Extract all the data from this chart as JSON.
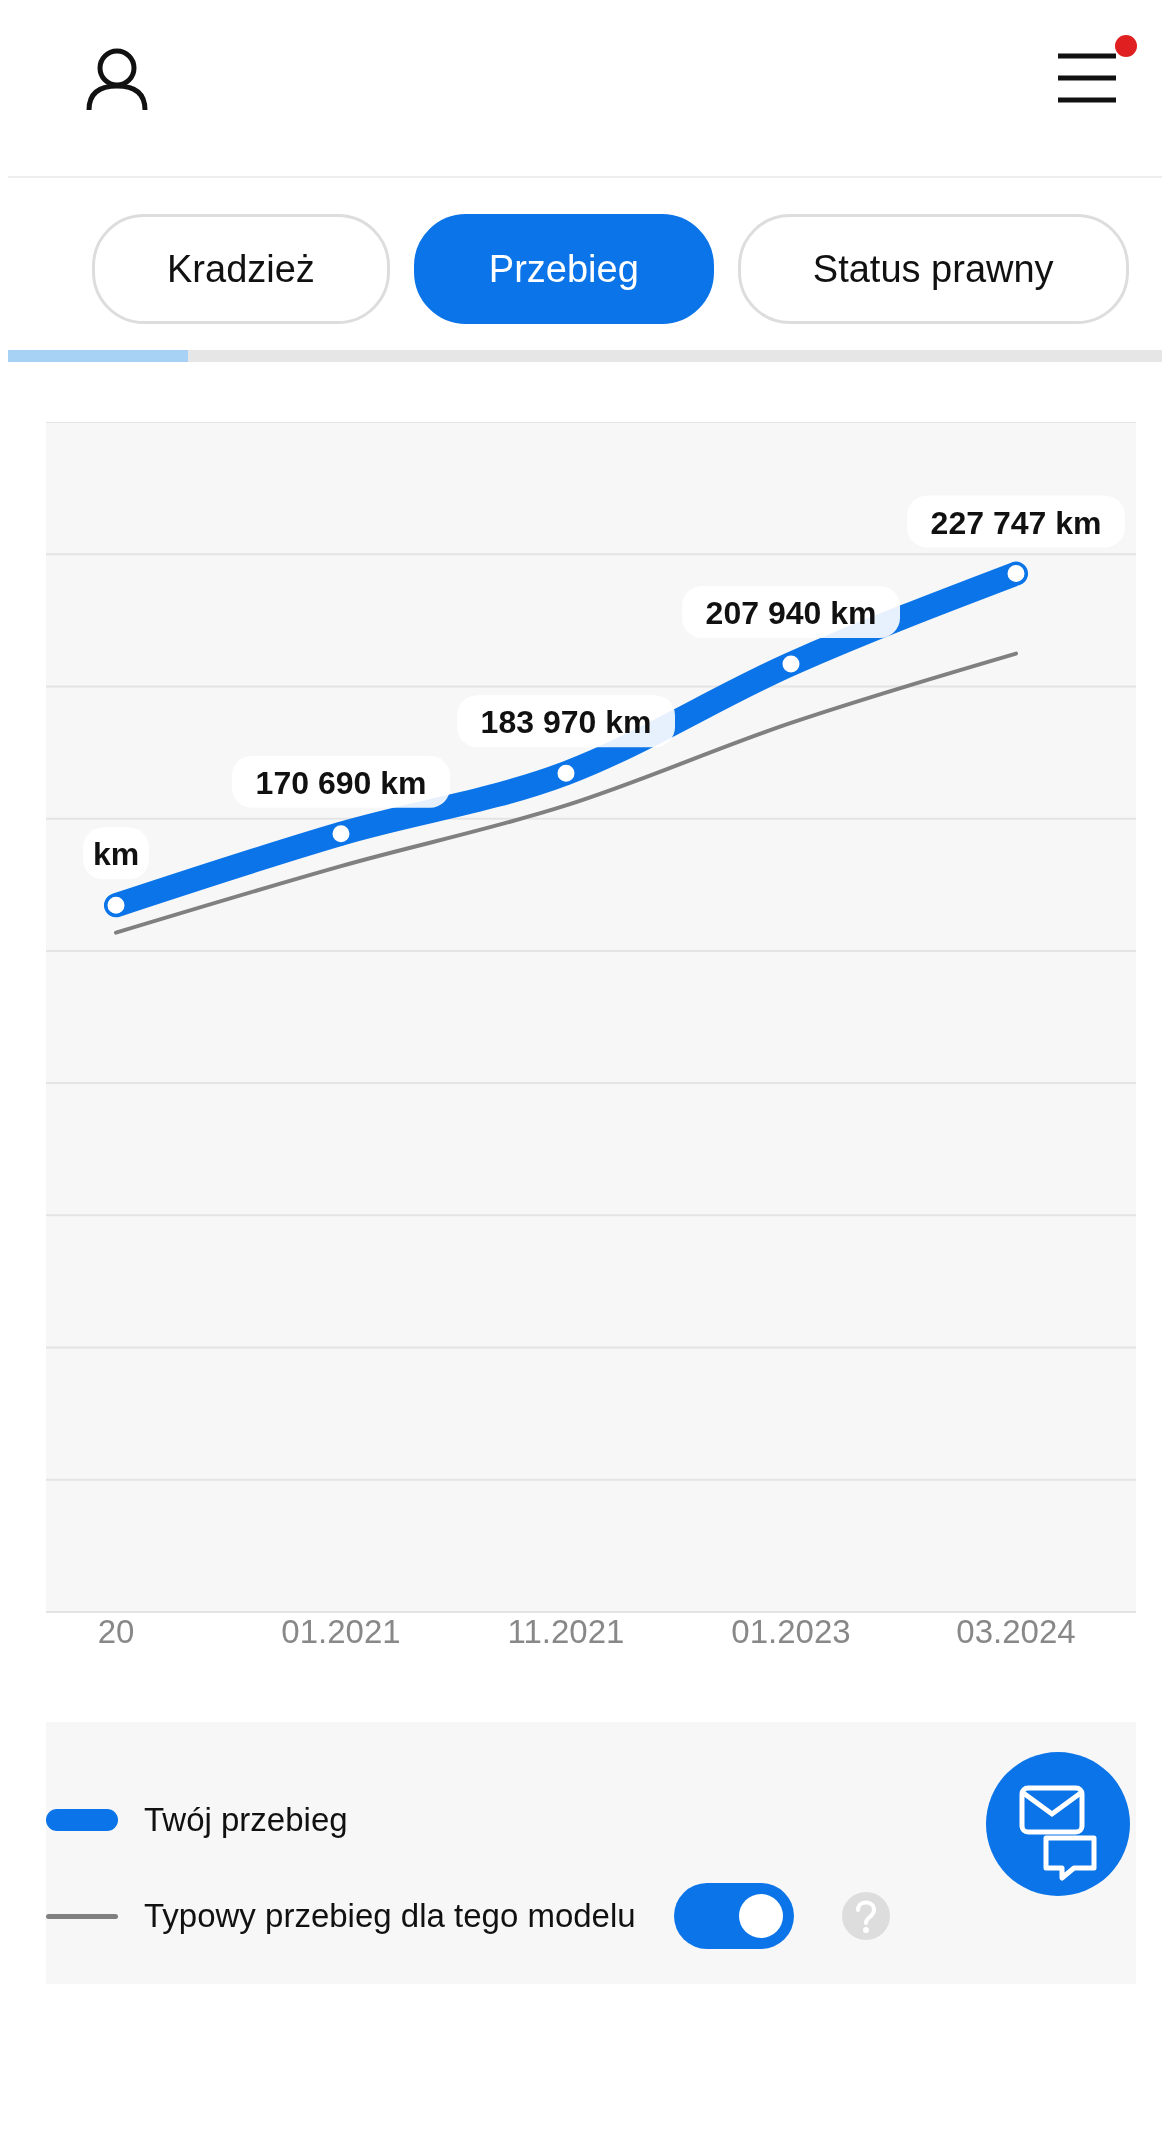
{
  "chart_data": {
    "type": "line",
    "categories": [
      "20",
      "01.2021",
      "11.2021",
      "01.2023",
      "03.2024"
    ],
    "series": [
      {
        "name": "Twój przebieg",
        "color": "#0a74e8",
        "values": [
          155000,
          170690,
          183970,
          207940,
          227747
        ],
        "value_labels": [
          "km",
          "170 690 km",
          "183 970 km",
          "207 940 km",
          "227 747 km"
        ],
        "marker": "circle"
      },
      {
        "name": "Typowy przebieg dla tego modelu",
        "color": "#808080",
        "values": [
          149000,
          163600,
          176900,
          195000,
          210200
        ],
        "marker": "none"
      }
    ],
    "ylim": [
      0,
      261000
    ],
    "yticks": [
      {
        "value": 0,
        "label": null
      },
      {
        "value": 29000,
        "label": null
      },
      {
        "value": 58000,
        "label": null
      },
      {
        "value": 87000,
        "label": null
      },
      {
        "value": 116000,
        "label": null
      },
      {
        "value": 145000,
        "label": null
      },
      {
        "value": 174000,
        "label": null
      },
      {
        "value": 203000,
        "label": null
      },
      {
        "value": 232000,
        "label": null
      },
      {
        "value": 261000,
        "label": null
      }
    ],
    "tick_labels": "x",
    "grid": "y",
    "legend": "bottom",
    "line_style": "solid",
    "annotations": [
      "Kradzież",
      "Przebieg",
      "Status prawny"
    ]
  }
}
